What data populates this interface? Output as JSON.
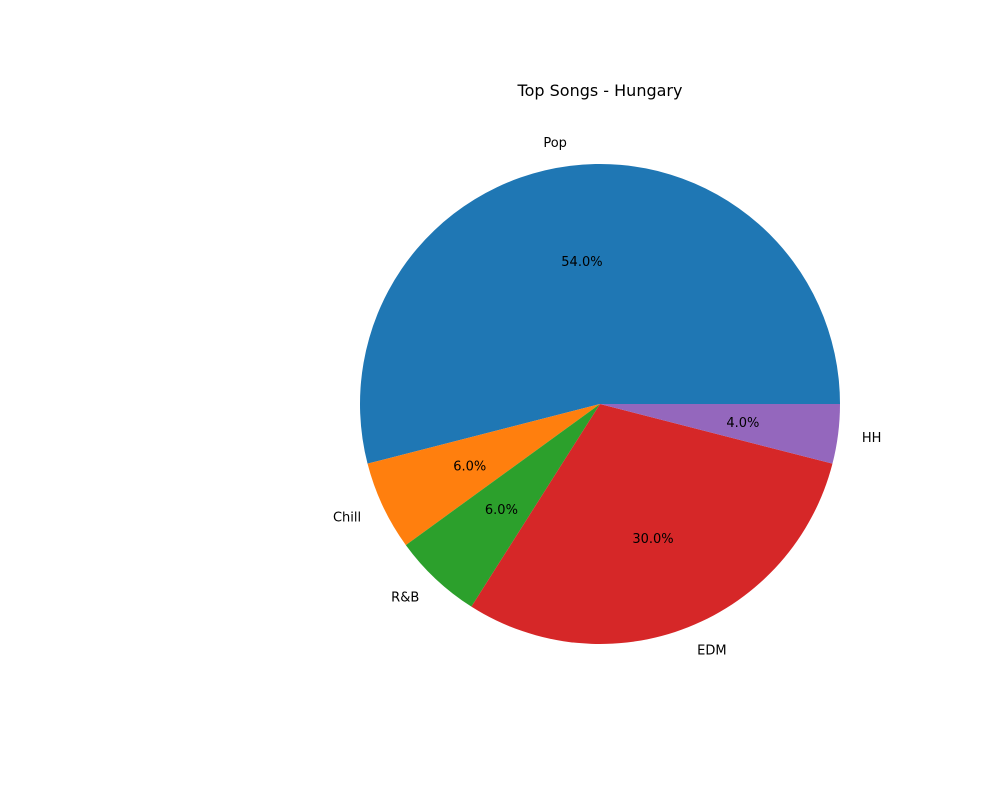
{
  "chart_data": {
    "type": "pie",
    "title": "Top Songs - Hungary",
    "categories": [
      "Pop",
      "Chill",
      "R&B",
      "EDM",
      "HH"
    ],
    "values": [
      54.0,
      6.0,
      6.0,
      30.0,
      4.0
    ],
    "percent_labels": [
      "54.0%",
      "6.0%",
      "6.0%",
      "30.0%",
      "4.0%"
    ],
    "colors": [
      "#1f77b4",
      "#ff7f0e",
      "#2ca02c",
      "#d62728",
      "#9467bd"
    ],
    "start_angle_deg": 0,
    "direction": "counterclockwise",
    "legend": "none"
  }
}
